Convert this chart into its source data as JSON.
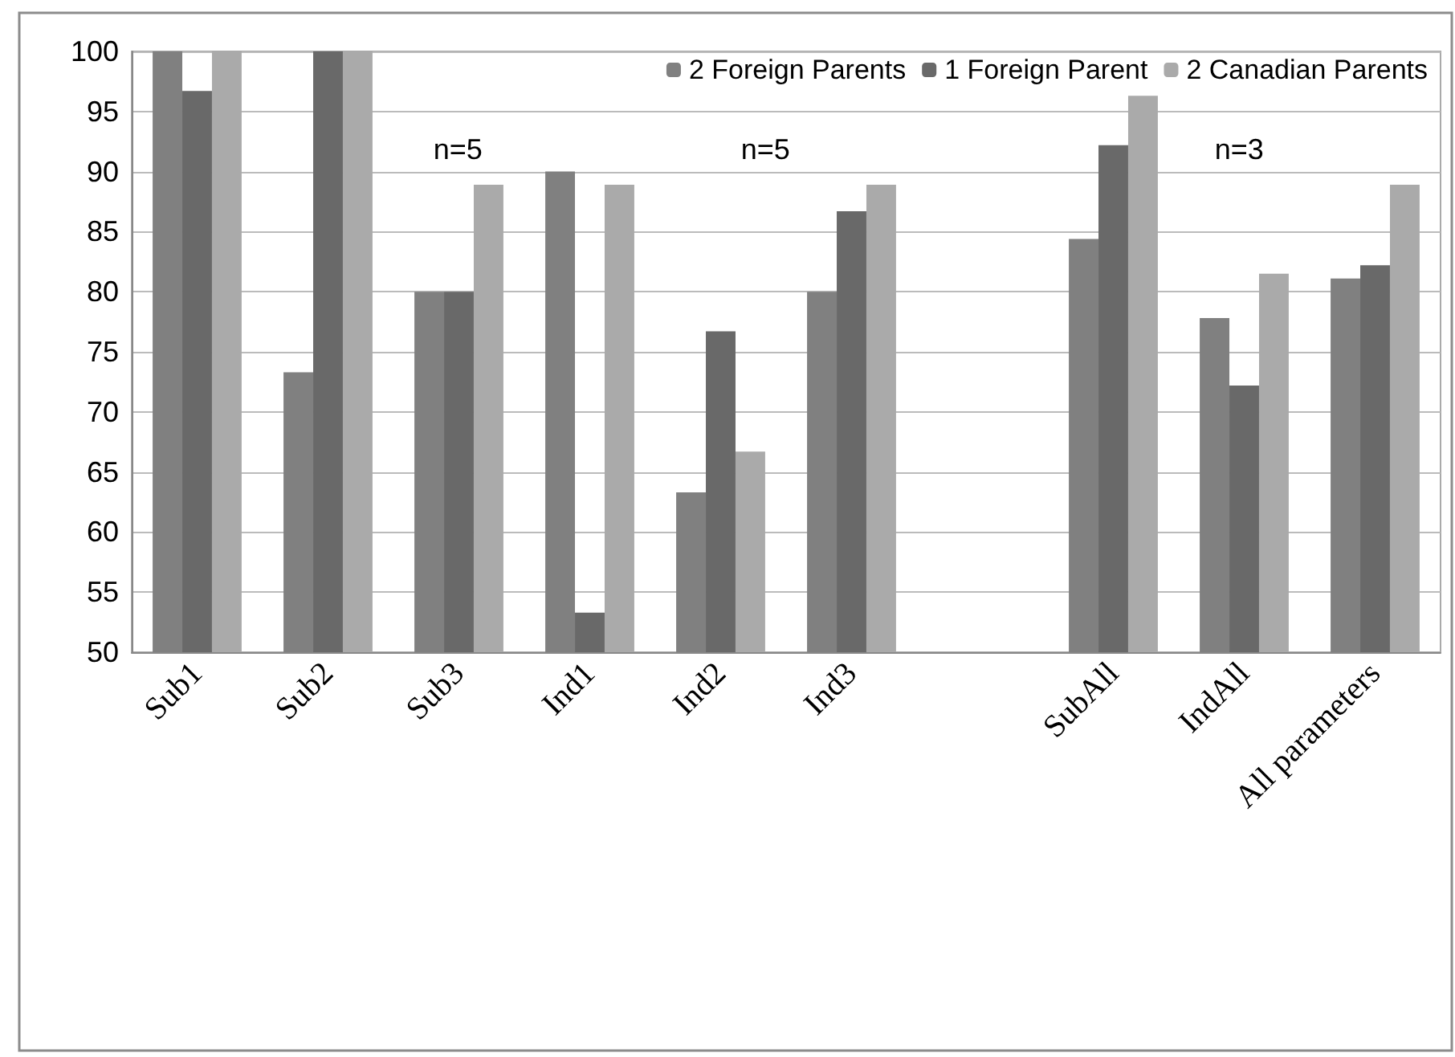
{
  "chart_data": {
    "type": "bar",
    "categories": [
      "Sub1",
      "Sub2",
      "Sub3",
      "Ind1",
      "Ind2",
      "Ind3",
      null,
      "SubAll",
      "IndAll",
      "All parameters"
    ],
    "series": [
      {
        "name": "2 Foreign Parents",
        "color": "#808080",
        "values": [
          100,
          73.3,
          80,
          90,
          63.3,
          80,
          null,
          84.4,
          77.8,
          81.1
        ]
      },
      {
        "name": "1 Foreign Parent",
        "color": "#696969",
        "values": [
          96.7,
          100,
          80,
          53.3,
          76.7,
          86.7,
          null,
          92.2,
          72.2,
          82.2
        ]
      },
      {
        "name": "2 Canadian Parents",
        "color": "#aaaaaa",
        "values": [
          100,
          100,
          88.9,
          88.9,
          66.7,
          88.9,
          null,
          96.3,
          81.5,
          88.9
        ]
      }
    ],
    "annotations": [
      "n=5",
      "n=5",
      "n=3"
    ],
    "ylim": [
      50,
      100
    ],
    "yticks": [
      50,
      55,
      60,
      65,
      70,
      75,
      80,
      85,
      90,
      95,
      100
    ],
    "grid": "y",
    "legend": "top right"
  }
}
